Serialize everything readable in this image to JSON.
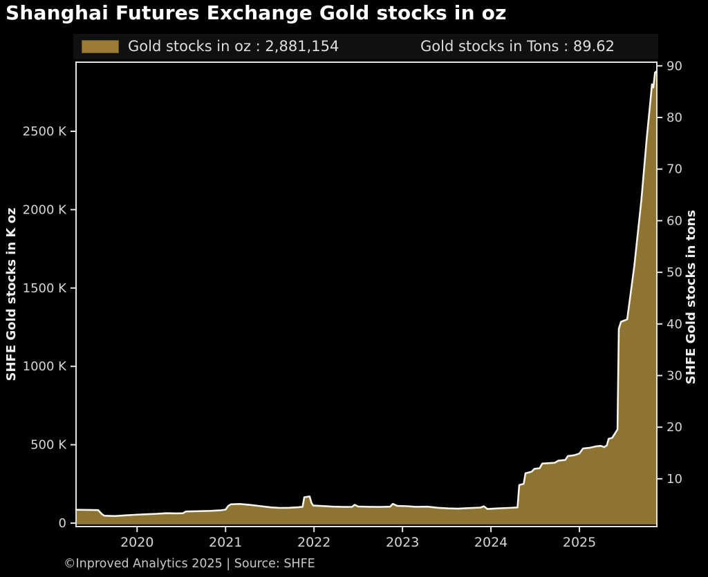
{
  "title": "Shanghai Futures Exchange Gold stocks in oz",
  "legend": {
    "oz_label": "Gold stocks in oz : 2,881,154",
    "tons_label": "Gold stocks in Tons : 89.62",
    "swatch_color": "#9c7c33"
  },
  "footer": "©Inproved Analytics 2025 | Source: SHFE",
  "colors": {
    "background": "#000000",
    "area_fill": "#8e7433",
    "line": "#f7f4ea",
    "frame": "#e6e6e6",
    "tick_label": "#d6d6d6",
    "axis_label": "#efefef",
    "title": "#ffffff",
    "legend_text": "#dedede",
    "footer_text": "#c9c9c9"
  },
  "chart_data": {
    "type": "area",
    "title": "Shanghai Futures Exchange Gold stocks in oz",
    "ylabel_left": "SHFE Gold stocks in K oz",
    "ylabel_right": "SHFE Gold stocks in tons",
    "legend_position": "top",
    "grid": false,
    "latest_oz": "2,881,154",
    "latest_tons": "89.62",
    "x_range": [
      2019.31,
      2025.875
    ],
    "ylim_left_koz": [
      0,
      2950
    ],
    "ylim_right_tons": [
      0,
      91
    ],
    "x_ticks": [
      {
        "value": 2020,
        "label": "2020"
      },
      {
        "value": 2021,
        "label": "2021"
      },
      {
        "value": 2022,
        "label": "2022"
      },
      {
        "value": 2023,
        "label": "2023"
      },
      {
        "value": 2024,
        "label": "2024"
      },
      {
        "value": 2025,
        "label": "2025"
      }
    ],
    "y_ticks_left": [
      {
        "value": 0,
        "label": "0"
      },
      {
        "value": 500,
        "label": "500 K"
      },
      {
        "value": 1000,
        "label": "1000 K"
      },
      {
        "value": 1500,
        "label": "1500 K"
      },
      {
        "value": 2000,
        "label": "2000 K"
      },
      {
        "value": 2500,
        "label": "2500 K"
      }
    ],
    "y_ticks_right": [
      {
        "value": 10,
        "label": "10"
      },
      {
        "value": 20,
        "label": "20"
      },
      {
        "value": 30,
        "label": "30"
      },
      {
        "value": 40,
        "label": "40"
      },
      {
        "value": 50,
        "label": "50"
      },
      {
        "value": 60,
        "label": "60"
      },
      {
        "value": 70,
        "label": "70"
      },
      {
        "value": 80,
        "label": "80"
      },
      {
        "value": 90,
        "label": "90"
      }
    ],
    "series": {
      "name": "Gold stocks in oz",
      "units": "K oz (thousand troy ounces)",
      "points": [
        [
          2019.31,
          85
        ],
        [
          2019.45,
          84
        ],
        [
          2019.56,
          83
        ],
        [
          2019.6,
          58
        ],
        [
          2019.63,
          47
        ],
        [
          2019.75,
          45
        ],
        [
          2019.88,
          50
        ],
        [
          2019.97,
          53
        ],
        [
          2020.08,
          56
        ],
        [
          2020.22,
          59
        ],
        [
          2020.33,
          63
        ],
        [
          2020.45,
          62
        ],
        [
          2020.52,
          63
        ],
        [
          2020.55,
          74
        ],
        [
          2020.68,
          76
        ],
        [
          2020.83,
          78
        ],
        [
          2020.95,
          82
        ],
        [
          2021.0,
          86
        ],
        [
          2021.03,
          110
        ],
        [
          2021.06,
          120
        ],
        [
          2021.16,
          122
        ],
        [
          2021.28,
          116
        ],
        [
          2021.4,
          108
        ],
        [
          2021.52,
          100
        ],
        [
          2021.62,
          97
        ],
        [
          2021.72,
          98
        ],
        [
          2021.82,
          101
        ],
        [
          2021.87,
          104
        ],
        [
          2021.89,
          165
        ],
        [
          2021.95,
          170
        ],
        [
          2021.97,
          130
        ],
        [
          2021.99,
          112
        ],
        [
          2022.1,
          109
        ],
        [
          2022.22,
          105
        ],
        [
          2022.35,
          103
        ],
        [
          2022.43,
          104
        ],
        [
          2022.46,
          117
        ],
        [
          2022.5,
          106
        ],
        [
          2022.62,
          104
        ],
        [
          2022.75,
          103
        ],
        [
          2022.86,
          105
        ],
        [
          2022.89,
          123
        ],
        [
          2022.94,
          110
        ],
        [
          2023.05,
          108
        ],
        [
          2023.15,
          104
        ],
        [
          2023.28,
          105
        ],
        [
          2023.4,
          98
        ],
        [
          2023.52,
          94
        ],
        [
          2023.63,
          92
        ],
        [
          2023.76,
          96
        ],
        [
          2023.88,
          99
        ],
        [
          2023.92,
          107
        ],
        [
          2023.96,
          90
        ],
        [
          2024.08,
          94
        ],
        [
          2024.2,
          97
        ],
        [
          2024.3,
          100
        ],
        [
          2024.32,
          243
        ],
        [
          2024.37,
          250
        ],
        [
          2024.39,
          318
        ],
        [
          2024.46,
          328
        ],
        [
          2024.49,
          346
        ],
        [
          2024.55,
          350
        ],
        [
          2024.58,
          380
        ],
        [
          2024.72,
          385
        ],
        [
          2024.76,
          398
        ],
        [
          2024.84,
          403
        ],
        [
          2024.87,
          428
        ],
        [
          2024.94,
          433
        ],
        [
          2025.0,
          444
        ],
        [
          2025.04,
          476
        ],
        [
          2025.12,
          481
        ],
        [
          2025.18,
          489
        ],
        [
          2025.24,
          493
        ],
        [
          2025.28,
          485
        ],
        [
          2025.31,
          496
        ],
        [
          2025.33,
          538
        ],
        [
          2025.37,
          544
        ],
        [
          2025.4,
          570
        ],
        [
          2025.43,
          598
        ],
        [
          2025.445,
          1240
        ],
        [
          2025.47,
          1285
        ],
        [
          2025.54,
          1300
        ],
        [
          2025.62,
          1640
        ],
        [
          2025.7,
          2060
        ],
        [
          2025.76,
          2450
        ],
        [
          2025.8,
          2680
        ],
        [
          2025.82,
          2800
        ],
        [
          2025.835,
          2780
        ],
        [
          2025.855,
          2875
        ],
        [
          2025.875,
          2881
        ]
      ]
    }
  }
}
